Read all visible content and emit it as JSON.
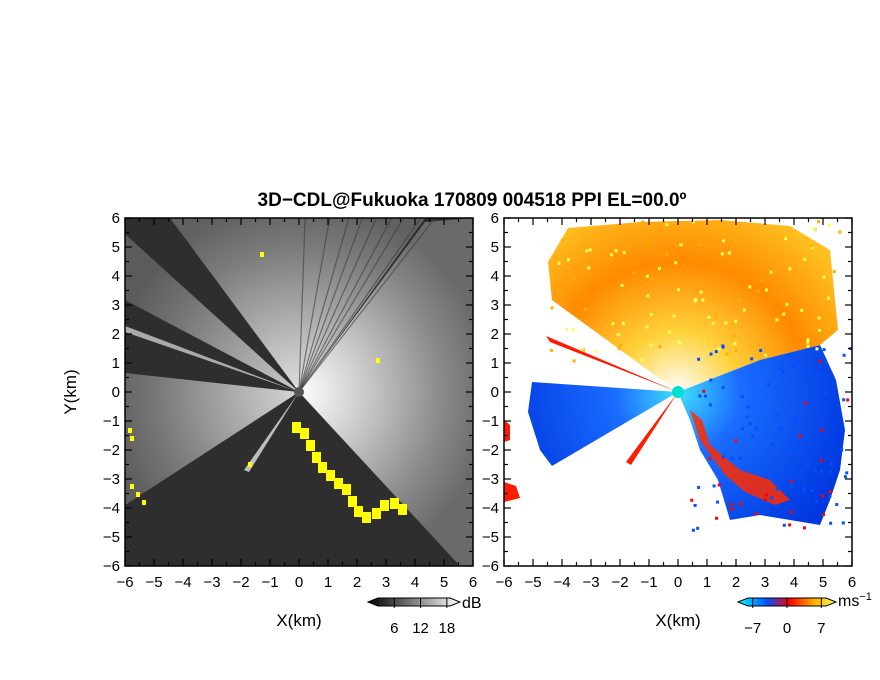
{
  "chart_data": [
    {
      "type": "heatmap",
      "title": "3D−CDL@Fukuoka 170809 004518 PPI EL=00.0º",
      "xlabel": "X(km)",
      "ylabel": "Y(km)",
      "xlim": [
        -6,
        6
      ],
      "ylim": [
        -6,
        6
      ],
      "xticks": [
        "−6",
        "−5",
        "−4",
        "−3",
        "−2",
        "−1",
        "0",
        "1",
        "2",
        "3",
        "4",
        "5",
        "6"
      ],
      "yticks": [
        "6",
        "5",
        "4",
        "3",
        "2",
        "1",
        "0",
        "−1",
        "−2",
        "−3",
        "−4",
        "−5",
        "−6"
      ],
      "colorbar": {
        "unit": "dB",
        "ticks": [
          {
            "value": 6,
            "label": "6"
          },
          {
            "value": 12,
            "label": "12"
          },
          {
            "value": 18,
            "label": "18"
          }
        ],
        "range": [
          0,
          21
        ],
        "colors": [
          "#000000",
          "#ffffff"
        ]
      },
      "highlight_color": "#ffff00",
      "blocked_sectors_deg": [
        [
          143,
          170
        ],
        [
          183,
          225
        ]
      ]
    },
    {
      "type": "heatmap",
      "xlabel": "X(km)",
      "xlim": [
        -6,
        6
      ],
      "ylim": [
        -6,
        6
      ],
      "xticks": [
        "−6",
        "−5",
        "−4",
        "−3",
        "−2",
        "−1",
        "0",
        "1",
        "2",
        "3",
        "4",
        "5",
        "6"
      ],
      "yticks": [
        "6",
        "5",
        "4",
        "3",
        "2",
        "1",
        "0",
        "−1",
        "−2",
        "−3",
        "−4",
        "−5",
        "−6"
      ],
      "colorbar": {
        "unit": "ms",
        "unit_sup": "−1",
        "ticks": [
          {
            "value": -7,
            "label": "−7"
          },
          {
            "value": 0,
            "label": "0"
          },
          {
            "value": 7,
            "label": "7"
          }
        ],
        "range": [
          -10,
          10
        ],
        "colors": [
          "#00ffff",
          "#0050ff",
          "#ff0000",
          "#ffb000",
          "#ffff60"
        ]
      }
    }
  ]
}
